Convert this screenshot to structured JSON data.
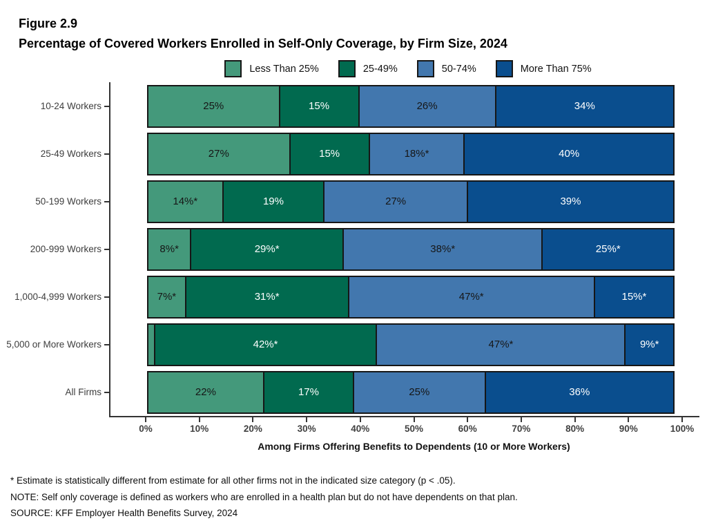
{
  "header": {
    "figure_label": "Figure 2.9",
    "title": "Percentage of Covered Workers Enrolled in Self-Only Coverage, by Firm Size, 2024"
  },
  "legend": [
    {
      "label": "Less Than 25%",
      "color": "#44997B"
    },
    {
      "label": "25-49%",
      "color": "#016A4F"
    },
    {
      "label": "50-74%",
      "color": "#4277AE"
    },
    {
      "label": "More Than 75%",
      "color": "#0A4E8E"
    }
  ],
  "chart_data": {
    "type": "bar",
    "orientation": "horizontal-stacked",
    "categories": [
      "10-24 Workers",
      "25-49 Workers",
      "50-199 Workers",
      "200-999 Workers",
      "1,000-4,999 Workers",
      "5,000 or More Workers",
      "All Firms"
    ],
    "series": [
      {
        "name": "Less Than 25%",
        "color": "#44997B",
        "text_color": "#161616",
        "values": [
          25,
          27,
          14,
          8,
          7,
          1,
          22
        ],
        "labels": [
          "25%",
          "27%",
          "14%*",
          "8%*",
          "7%*",
          "",
          "22%"
        ]
      },
      {
        "name": "25-49%",
        "color": "#016A4F",
        "text_color": "#ffffff",
        "values": [
          15,
          15,
          19,
          29,
          31,
          42,
          17
        ],
        "labels": [
          "15%",
          "15%",
          "19%",
          "29%*",
          "31%*",
          "42%*",
          "17%"
        ]
      },
      {
        "name": "50-74%",
        "color": "#4277AE",
        "text_color": "#161616",
        "values": [
          26,
          18,
          27,
          38,
          47,
          47,
          25
        ],
        "labels": [
          "26%",
          "18%*",
          "27%",
          "38%*",
          "47%*",
          "47%*",
          "25%"
        ]
      },
      {
        "name": "More Than 75%",
        "color": "#0A4E8E",
        "text_color": "#ffffff",
        "values": [
          34,
          40,
          39,
          25,
          15,
          9,
          36
        ],
        "labels": [
          "34%",
          "40%",
          "39%",
          "25%*",
          "15%*",
          "9%*",
          "36%"
        ]
      }
    ],
    "xlabel": "Among Firms Offering Benefits to Dependents (10 or More Workers)",
    "x_ticks": [
      "0%",
      "10%",
      "20%",
      "30%",
      "40%",
      "50%",
      "60%",
      "70%",
      "80%",
      "90%",
      "100%"
    ],
    "xlim": [
      0,
      100
    ],
    "grid": false,
    "legend_position": "top"
  },
  "footnotes": {
    "asterisk": "* Estimate is statistically different from estimate for all other firms not in the indicated size category (p < .05).",
    "note": "NOTE: Self only coverage is defined as workers who are enrolled in a health plan but do not have dependents on that plan.",
    "source": "SOURCE: KFF Employer Health Benefits Survey, 2024"
  }
}
